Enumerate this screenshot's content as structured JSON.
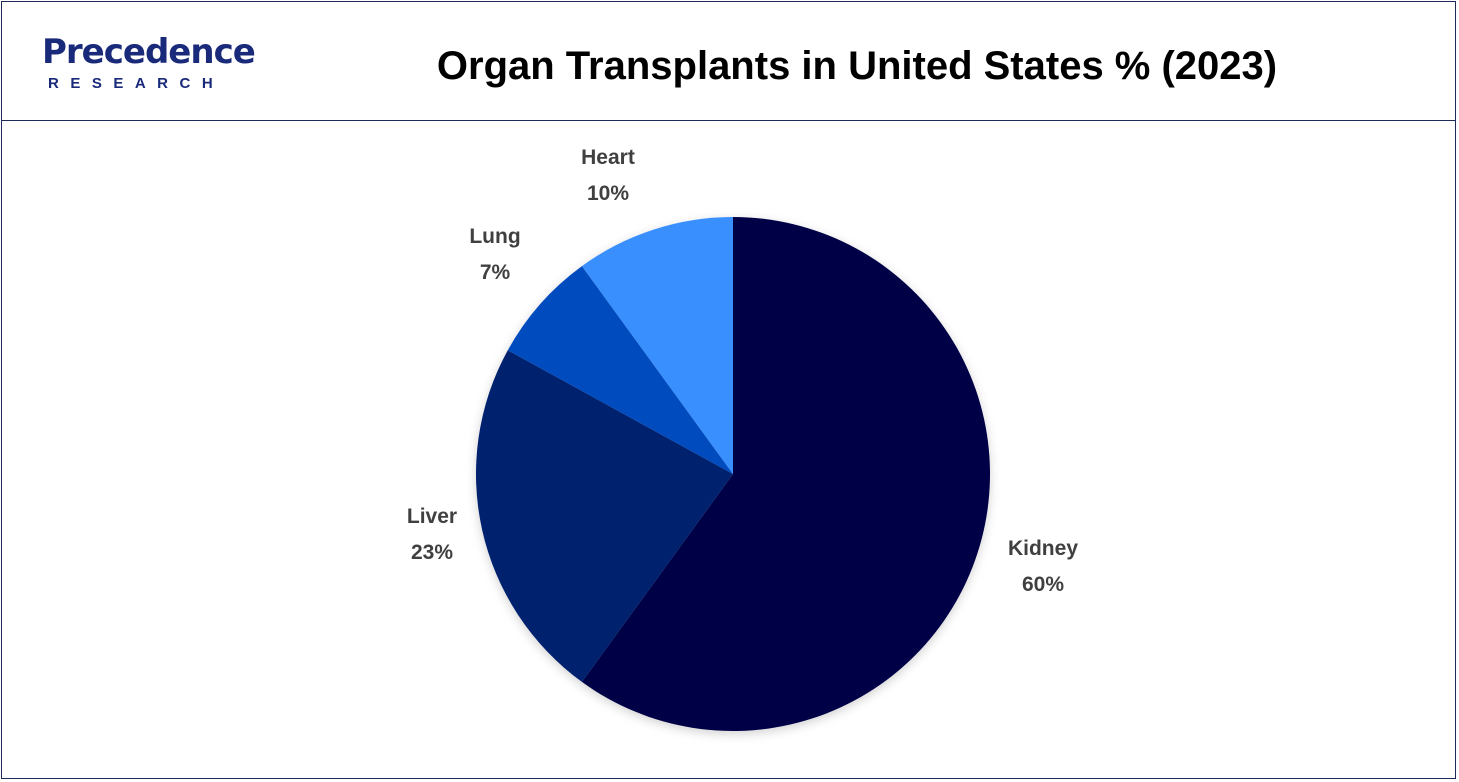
{
  "header": {
    "logo_text": "Precedence",
    "logo_subtext": "RESEARCH",
    "title": "Organ Transplants in United States % (2023)"
  },
  "chart_data": {
    "type": "pie",
    "title": "Organ Transplants in United States % (2023)",
    "start_angle_deg": 0,
    "direction": "clockwise",
    "slices": [
      {
        "label": "Kidney",
        "value": 60,
        "value_label": "60%",
        "color": "#000646"
      },
      {
        "label": "Liver",
        "value": 23,
        "value_label": "23%",
        "color": "#03206e"
      },
      {
        "label": "Lung",
        "value": 7,
        "value_label": "7%",
        "color": "#014bbd"
      },
      {
        "label": "Heart",
        "value": 10,
        "value_label": "10%",
        "color": "#388ffd"
      }
    ]
  }
}
